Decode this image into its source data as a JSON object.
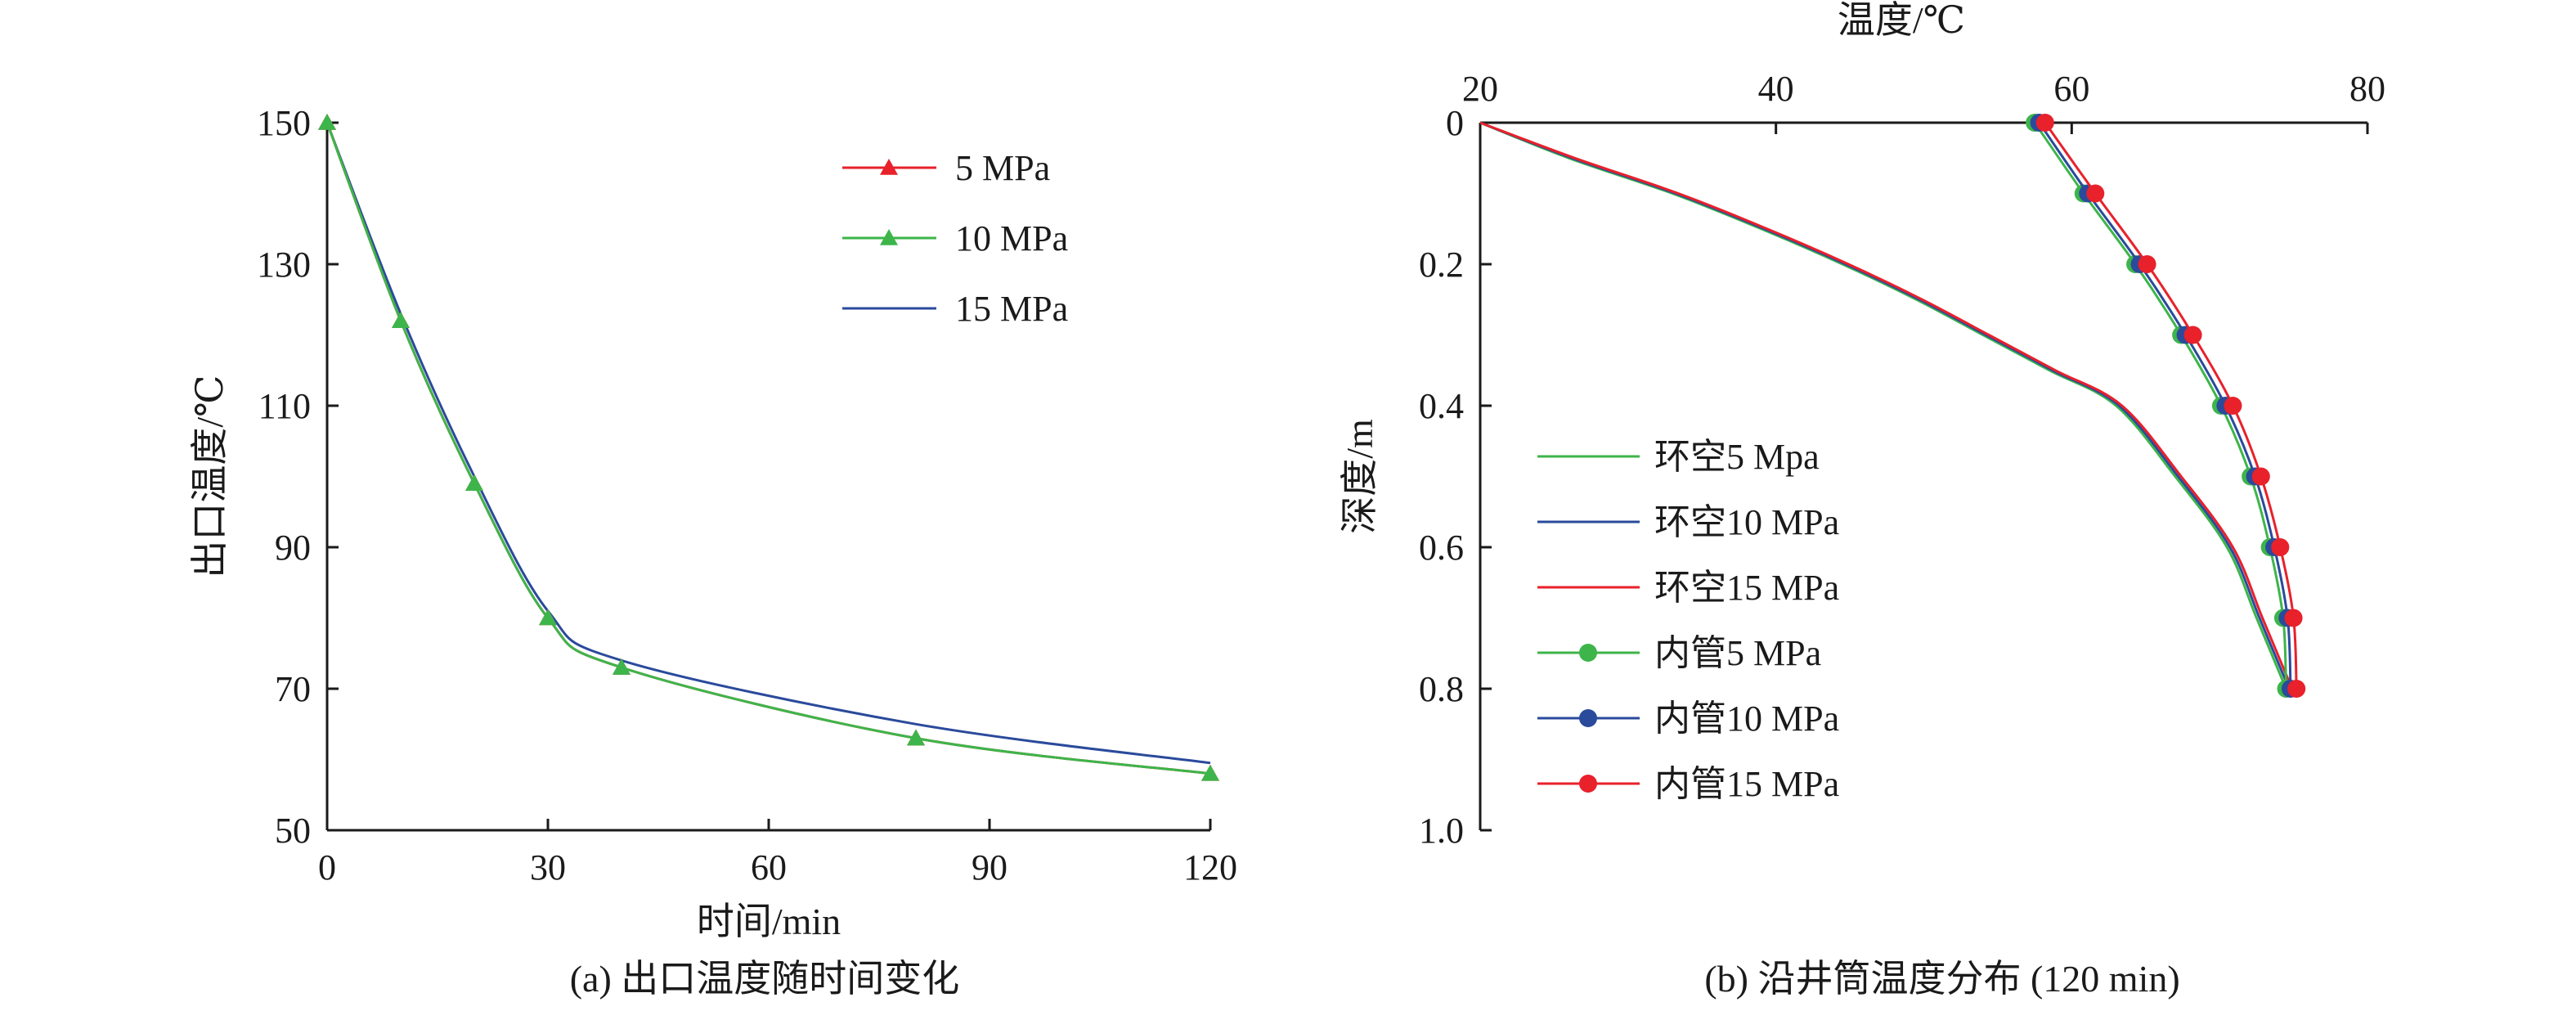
{
  "figure": {
    "caption_a": "(a) 出口温度随时间变化",
    "caption_b": "(b) 沿井筒温度分布 (120 min)"
  },
  "chart_data": [
    {
      "type": "line",
      "xlabel": "时间/min",
      "ylabel": "出口温度/℃",
      "xlim": [
        0,
        120
      ],
      "ylim": [
        50,
        150
      ],
      "x_ticks": [
        "0",
        "30",
        "60",
        "90",
        "120"
      ],
      "y_ticks": [
        "50",
        "70",
        "90",
        "110",
        "130",
        "150"
      ],
      "legend_position": "top-right",
      "series": [
        {
          "name": "5 MPa",
          "color": "#e8212b",
          "marker": "triangle",
          "x": [
            0,
            10,
            20,
            30,
            40,
            80,
            120
          ],
          "values": [
            150,
            122,
            99,
            80,
            73,
            63,
            58
          ]
        },
        {
          "name": "10 MPa",
          "color": "#3db54a",
          "marker": "triangle",
          "x": [
            0,
            10,
            20,
            30,
            40,
            80,
            120
          ],
          "values": [
            150,
            122,
            99,
            80,
            73,
            63,
            58
          ]
        },
        {
          "name": "15 MPa",
          "color": "#2a4a9b",
          "marker": "none",
          "x": [
            0,
            10,
            20,
            30,
            40,
            80,
            120
          ],
          "values": [
            150,
            123,
            100,
            81,
            74,
            65,
            59.5
          ]
        }
      ]
    },
    {
      "type": "line",
      "xlabel": "温度/℃",
      "ylabel": "深度/m",
      "xlim": [
        20,
        80
      ],
      "ylim": [
        0,
        1.0
      ],
      "y_inverted": true,
      "x_axis_position": "top",
      "x_ticks": [
        "20",
        "40",
        "60",
        "80"
      ],
      "y_ticks": [
        "0",
        "0.2",
        "0.4",
        "0.6",
        "0.8",
        "1.0"
      ],
      "legend_position": "bottom-left",
      "series": [
        {
          "name": "环空5 Mpa",
          "color": "#3db54a",
          "marker": "none",
          "x": [
            20,
            26,
            33,
            39,
            44.5,
            49.5,
            54,
            58.5,
            63,
            67,
            70.5,
            72.5,
            74.5
          ],
          "y": [
            0,
            0.05,
            0.1,
            0.15,
            0.2,
            0.25,
            0.3,
            0.35,
            0.4,
            0.5,
            0.6,
            0.7,
            0.8
          ]
        },
        {
          "name": "环空10 MPa",
          "color": "#2a4a9b",
          "marker": "none",
          "x": [
            20,
            26.2,
            33.2,
            39.2,
            44.7,
            49.7,
            54.2,
            58.7,
            63.2,
            67.2,
            70.7,
            72.7,
            74.7
          ],
          "y": [
            0,
            0.05,
            0.1,
            0.15,
            0.2,
            0.25,
            0.3,
            0.35,
            0.4,
            0.5,
            0.6,
            0.7,
            0.8
          ]
        },
        {
          "name": "环空15 MPa",
          "color": "#e8212b",
          "marker": "none",
          "x": [
            20,
            26.4,
            33.4,
            39.4,
            44.9,
            49.9,
            54.4,
            58.9,
            63.4,
            67.4,
            70.9,
            72.9,
            74.9
          ],
          "y": [
            0,
            0.05,
            0.1,
            0.15,
            0.2,
            0.25,
            0.3,
            0.35,
            0.4,
            0.5,
            0.6,
            0.7,
            0.8
          ]
        },
        {
          "name": "内管5 MPa",
          "color": "#3db54a",
          "marker": "circle",
          "x": [
            57.5,
            60.8,
            64.3,
            67.4,
            70.1,
            72.1,
            73.4,
            74.3,
            74.5
          ],
          "y": [
            0,
            0.1,
            0.2,
            0.3,
            0.4,
            0.5,
            0.6,
            0.7,
            0.8
          ]
        },
        {
          "name": "内管10 MPa",
          "color": "#2a4a9b",
          "marker": "circle",
          "x": [
            57.8,
            61.1,
            64.6,
            67.7,
            70.4,
            72.4,
            73.7,
            74.6,
            74.8
          ],
          "y": [
            0,
            0.1,
            0.2,
            0.3,
            0.4,
            0.5,
            0.6,
            0.7,
            0.8
          ]
        },
        {
          "name": "内管15 MPa",
          "color": "#e8212b",
          "marker": "circle",
          "x": [
            58.2,
            61.6,
            65.1,
            68.2,
            70.9,
            72.8,
            74.1,
            75.0,
            75.2
          ],
          "y": [
            0,
            0.1,
            0.2,
            0.3,
            0.4,
            0.5,
            0.6,
            0.7,
            0.8
          ]
        }
      ]
    }
  ]
}
